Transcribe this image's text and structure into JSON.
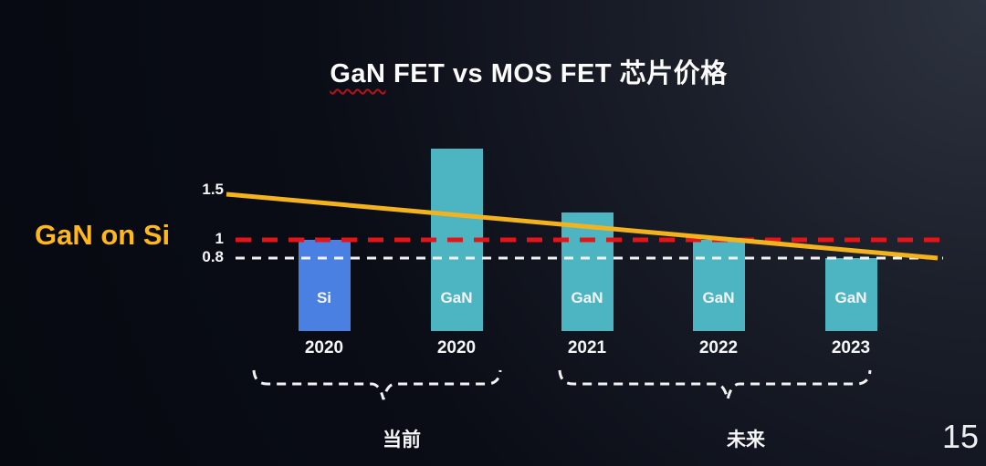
{
  "slide": {
    "title": {
      "highlight": "GaN",
      "rest": " FET vs MOS FET 芯片价格"
    },
    "side_label": "GaN on Si",
    "page_number": "15"
  },
  "colors": {
    "background_dark": "#060910",
    "background_light": "#2e3340",
    "bar_si": "#4a80e2",
    "bar_gan": "#4db5c2",
    "accent_gold": "#f2b31e",
    "reference_red": "#e41418",
    "reference_white": "#f2f2f2",
    "text_white": "#f4f6f8"
  },
  "chart_data": {
    "type": "bar",
    "title": "GaN FET vs MOS FET 芯片价格",
    "xlabel": "",
    "ylabel": "",
    "categories": [
      "2020",
      "2020",
      "2021",
      "2022",
      "2023"
    ],
    "bar_labels": [
      "Si",
      "GaN",
      "GaN",
      "GaN",
      "GaN"
    ],
    "bar_types": [
      "si",
      "gan",
      "gan",
      "gan",
      "gan"
    ],
    "series": [
      {
        "name": "芯片价格",
        "values": [
          1.0,
          2.0,
          1.3,
          1.0,
          0.8
        ]
      }
    ],
    "ylim": [
      0,
      2.2
    ],
    "grid": false,
    "legend_position": "none",
    "reference_lines": [
      {
        "value": 1,
        "label": "1",
        "color": "red",
        "style": "dashed"
      },
      {
        "value": 0.8,
        "label": "0.8",
        "color": "white",
        "style": "dashed"
      }
    ],
    "trend_line": {
      "name": "GaN on Si",
      "label": "1.5",
      "start_value": 1.5,
      "end_value": 0.8,
      "color": "gold"
    },
    "group_annotations": [
      {
        "label": "当前",
        "covers": [
          "2020 Si",
          "2020 GaN"
        ]
      },
      {
        "label": "未来",
        "covers": [
          "2021",
          "2022",
          "2023"
        ]
      }
    ]
  }
}
